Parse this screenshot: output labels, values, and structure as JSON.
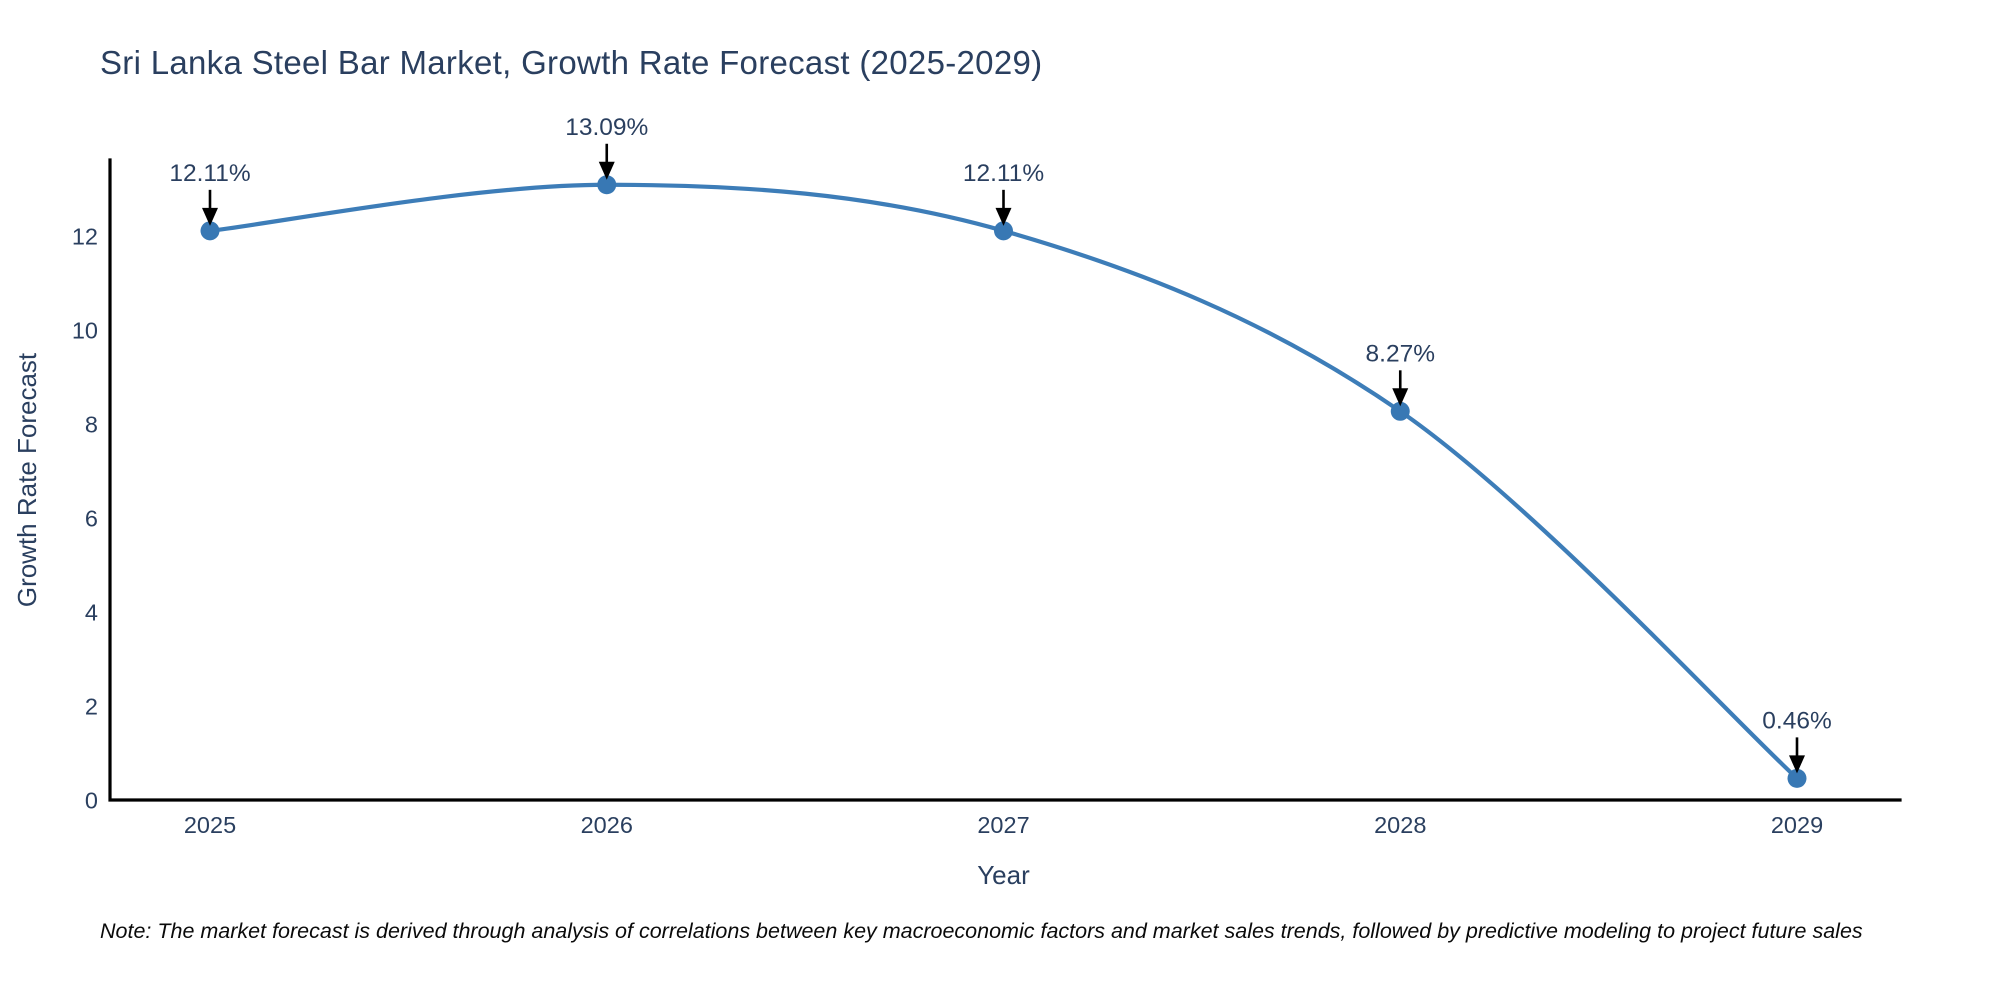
{
  "chart_data": {
    "type": "line",
    "title": "Sri Lanka Steel Bar Market, Growth Rate Forecast (2025-2029)",
    "xlabel": "Year",
    "ylabel": "Growth Rate Forecast",
    "categories": [
      "2025",
      "2026",
      "2027",
      "2028",
      "2029"
    ],
    "series": [
      {
        "name": "Growth Rate Forecast",
        "values": [
          12.11,
          13.09,
          12.11,
          8.27,
          0.46
        ]
      }
    ],
    "point_labels": [
      "12.11%",
      "13.09%",
      "12.11%",
      "8.27%",
      "0.46%"
    ],
    "y_ticks": [
      0,
      2,
      4,
      6,
      8,
      10,
      12
    ],
    "ylim": [
      0,
      13.6
    ],
    "grid": false,
    "legend": "none",
    "line_shape": "spline",
    "annotation_style": "text-with-down-arrow",
    "colors": {
      "line": "#3d7db8",
      "marker": "#3878b4",
      "axis": "#000000",
      "tick_text": "#2a3f5f",
      "title_text": "#2a3f5f",
      "annotation_text": "#2a3f5f",
      "annotation_arrow": "#000000",
      "note_text": "#0a0a0a",
      "background": "#ffffff"
    }
  },
  "note": {
    "text": "Note: The market forecast is derived through analysis of correlations between key macroeconomic factors and market sales trends, followed by predictive modeling to project future sales"
  }
}
